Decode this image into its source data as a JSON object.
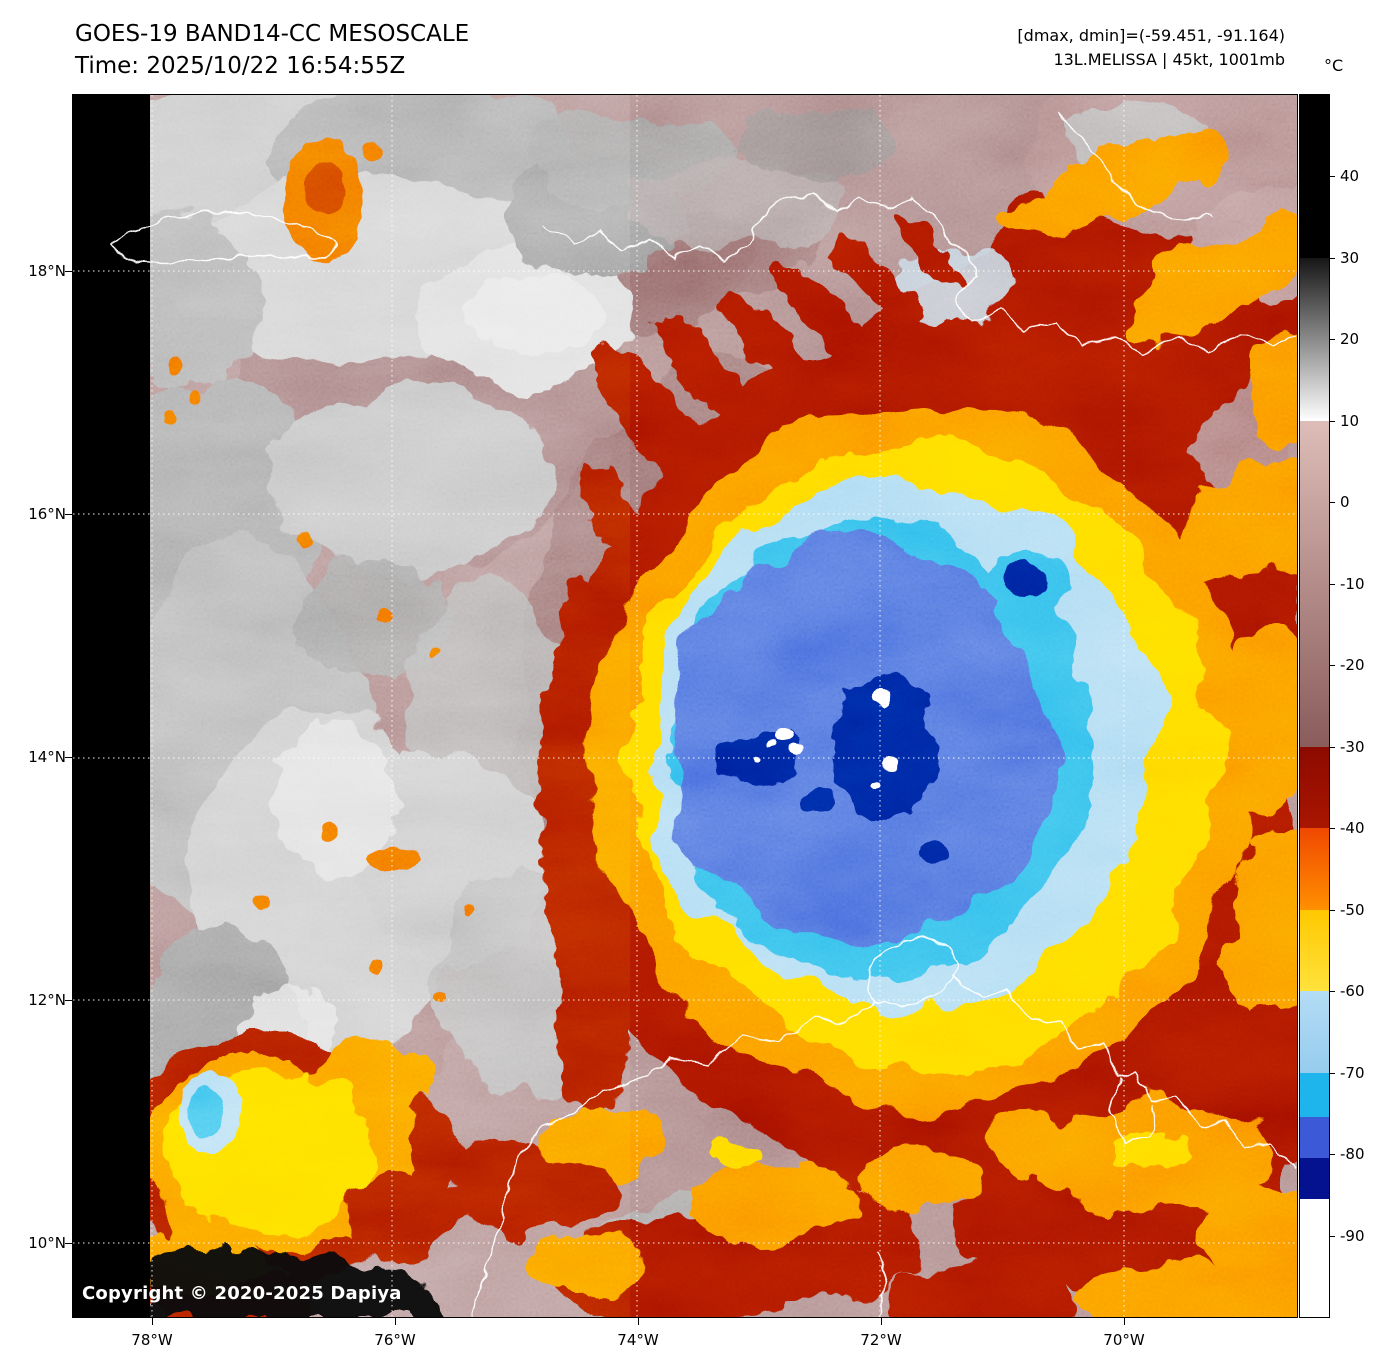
{
  "header": {
    "title_line1": "GOES-19 BAND14-CC MESOSCALE",
    "title_line2": "Time: 2025/10/22 16:54:55Z",
    "info_line1": "[dmax, dmin]=(-59.451, -91.164)",
    "info_line2": "13L.MELISSA | 45kt, 1001mb"
  },
  "copyright": "Copyright © 2020-2025 Dapiya",
  "storm": {
    "satellite": "GOES-19",
    "band": "BAND14-CC",
    "sector": "MESOSCALE",
    "time_utc": "2025/10/22 16:54:55Z",
    "designation": "13L",
    "name": "MELISSA",
    "wind": "45kt",
    "pressure": "1001mb",
    "dmax": "-59.451",
    "dmin": "-91.164"
  },
  "axes": {
    "lat_ticks": [
      {
        "deg": 18,
        "label": "18°N"
      },
      {
        "deg": 16,
        "label": "16°N"
      },
      {
        "deg": 14,
        "label": "14°N"
      },
      {
        "deg": 12,
        "label": "12°N"
      },
      {
        "deg": 10,
        "label": "10°N"
      }
    ],
    "lon_ticks": [
      {
        "deg": -78,
        "label": "78°W"
      },
      {
        "deg": -76,
        "label": "76°W"
      },
      {
        "deg": -74,
        "label": "74°W"
      },
      {
        "deg": -72,
        "label": "72°W"
      },
      {
        "deg": -70,
        "label": "70°W"
      }
    ]
  },
  "colorbar": {
    "unit": "°C",
    "max": 50,
    "min": -100,
    "ticks": [
      {
        "value": 40,
        "label": "40"
      },
      {
        "value": 30,
        "label": "30"
      },
      {
        "value": 20,
        "label": "20"
      },
      {
        "value": 10,
        "label": "10"
      },
      {
        "value": 0,
        "label": "0"
      },
      {
        "value": -10,
        "label": "-10"
      },
      {
        "value": -20,
        "label": "-20"
      },
      {
        "value": -30,
        "label": "-30"
      },
      {
        "value": -40,
        "label": "-40"
      },
      {
        "value": -50,
        "label": "-50"
      },
      {
        "value": -60,
        "label": "-60"
      },
      {
        "value": -70,
        "label": "-70"
      },
      {
        "value": -80,
        "label": "-80"
      },
      {
        "value": -90,
        "label": "-90"
      }
    ],
    "segments": [
      {
        "from": 50,
        "to": 30,
        "color_top": "#000000",
        "color_bottom": "#000000"
      },
      {
        "from": 30,
        "to": 10,
        "color_top": "#161616",
        "color_bottom": "#ffffff"
      },
      {
        "from": 10,
        "to": -30,
        "color_top": "#ddbdb8",
        "color_bottom": "#8a5c5c"
      },
      {
        "from": -30,
        "to": -40,
        "color_top": "#8d0a00",
        "color_bottom": "#a81600"
      },
      {
        "from": -40,
        "to": -50,
        "color_top": "#f04800",
        "color_bottom": "#ff9000"
      },
      {
        "from": -50,
        "to": -60,
        "color_top": "#ffc800",
        "color_bottom": "#ffe23c"
      },
      {
        "from": -60,
        "to": -70,
        "color_top": "#b4dcf5",
        "color_bottom": "#96ccee"
      },
      {
        "from": -70,
        "to": -75.5,
        "color_top": "#1eb4ec",
        "color_bottom": "#1eb4ec"
      },
      {
        "from": -75.5,
        "to": -80.5,
        "color_top": "#3c5ad7",
        "color_bottom": "#3c5ad7"
      },
      {
        "from": -80.5,
        "to": -85.5,
        "color_top": "#05128f",
        "color_bottom": "#05128f"
      },
      {
        "from": -85.5,
        "to": -100,
        "color_top": "#ffffff",
        "color_bottom": "#ffffff"
      }
    ]
  }
}
